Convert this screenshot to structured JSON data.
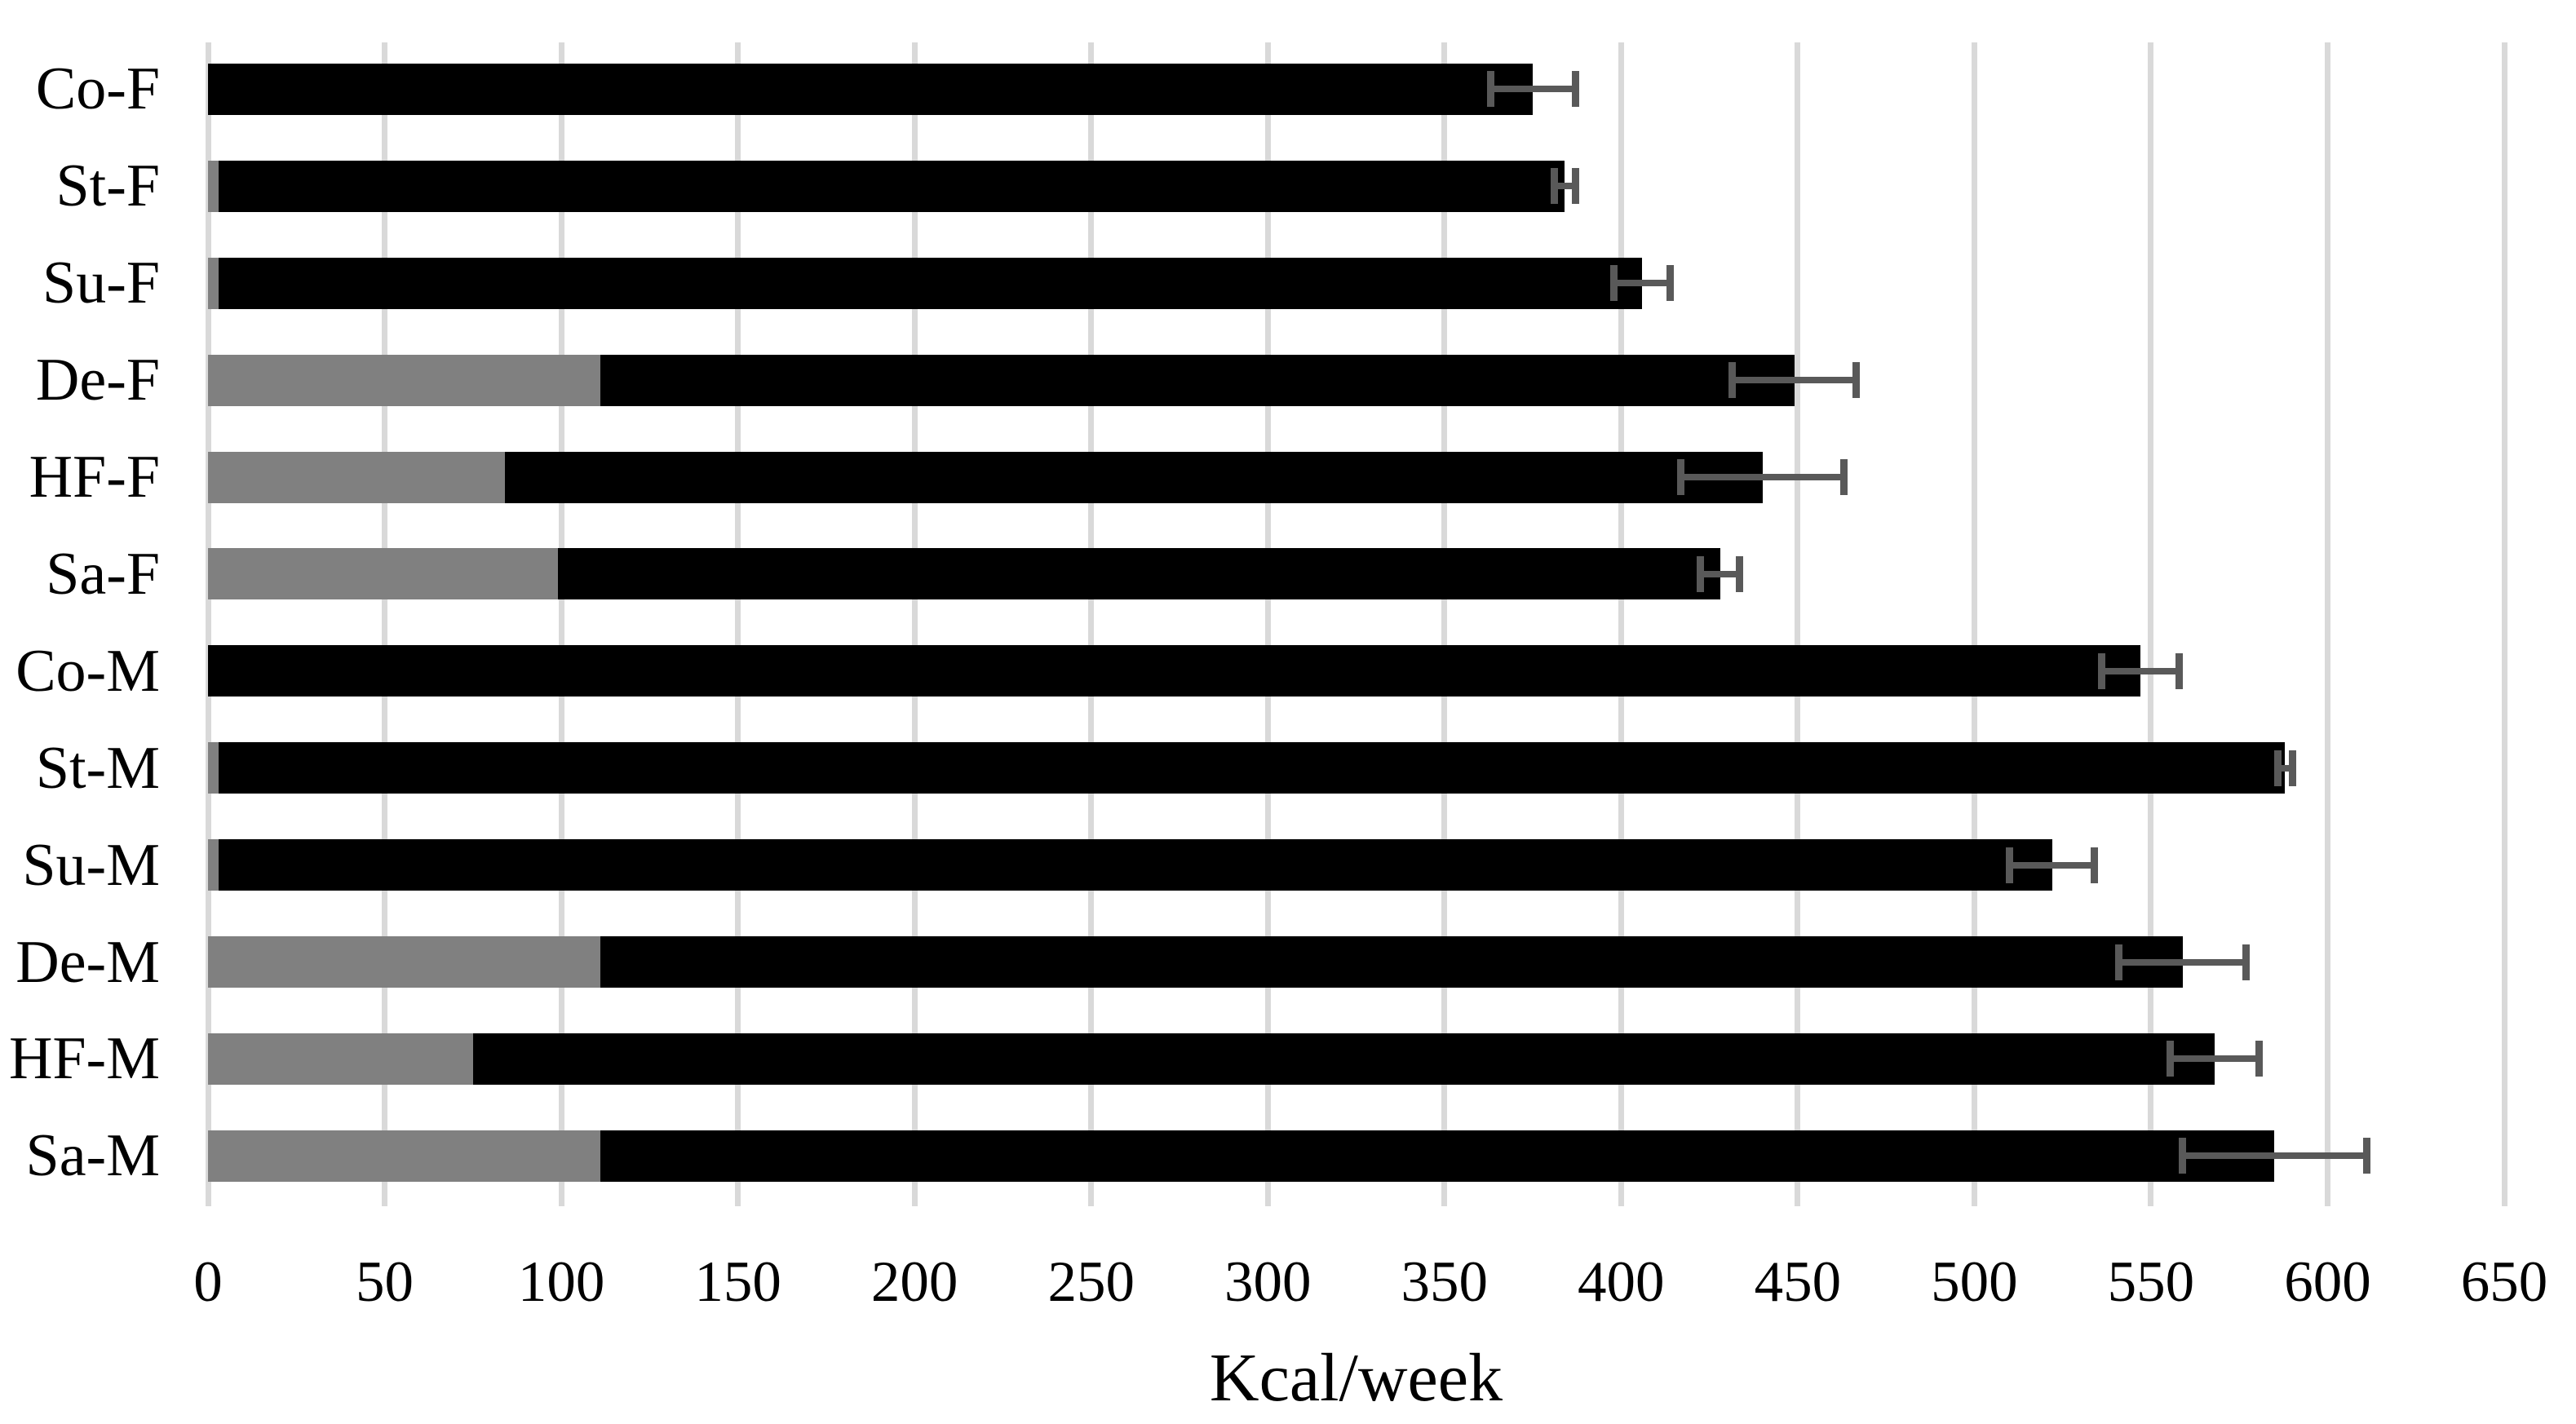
{
  "chart_data": {
    "type": "bar",
    "orientation": "horizontal",
    "stacked": true,
    "title": "",
    "xlabel": "Kcal/week",
    "ylabel": "",
    "xlim": [
      0,
      650
    ],
    "xticks": [
      0,
      50,
      100,
      150,
      200,
      250,
      300,
      350,
      400,
      450,
      500,
      550,
      600,
      650
    ],
    "grid": "vertical gridlines only",
    "legend": "none",
    "categories": [
      "Co-F",
      "St-F",
      "Su-F",
      "De-F",
      "HF-F",
      "Sa-F",
      "Co-M",
      "St-M",
      "Su-M",
      "De-M",
      "HF-M",
      "Sa-M"
    ],
    "series": [
      {
        "name": "gray-segment",
        "color": "#808080",
        "values": [
          0,
          3,
          3,
          111,
          84,
          99,
          0,
          3,
          3,
          111,
          75,
          111
        ]
      },
      {
        "name": "black-segment",
        "color": "#000000",
        "values": [
          375,
          381,
          403,
          338,
          356,
          329,
          547,
          585,
          519,
          448,
          493,
          474
        ]
      }
    ],
    "totals": [
      375,
      384,
      406,
      449,
      440,
      428,
      547,
      588,
      522,
      559,
      568,
      585
    ],
    "error_bars": {
      "color": "#595959",
      "plus_minus": [
        12,
        3,
        8,
        17.5,
        23,
        5.5,
        11,
        2,
        12,
        18,
        12.5,
        26
      ]
    },
    "colors": {
      "gridline": "#D9D9D9",
      "background": "#FFFFFF",
      "text": "#000000"
    }
  }
}
